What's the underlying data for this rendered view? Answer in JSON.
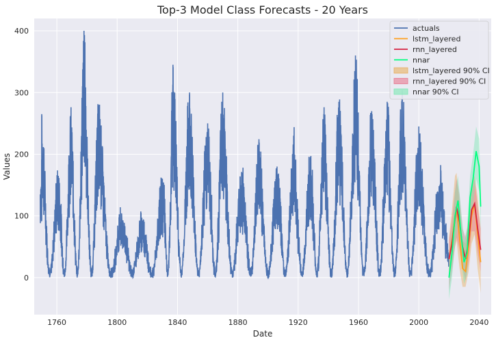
{
  "chart_data": {
    "type": "line",
    "title": "Top-3 Model Class Forecasts - 20 Years",
    "xlabel": "Date",
    "ylabel": "Values",
    "xlim": [
      1745,
      2048
    ],
    "ylim": [
      -60,
      420
    ],
    "xticks": [
      1760,
      1800,
      1840,
      1880,
      1920,
      1960,
      2000,
      2040
    ],
    "yticks": [
      0,
      100,
      200,
      300,
      400
    ],
    "grid": true,
    "legend_position": "top-right",
    "colors": {
      "background": "#eaeaf2",
      "grid": "#ffffff",
      "actuals": "#4c72b0",
      "lstm_layered": "#ff9f1c",
      "rnn_layered": "#d62040",
      "nnar": "#00ff7f",
      "lstm_band": "#e8b060",
      "rnn_band": "#e87890",
      "nnar_band": "#7de8b4"
    },
    "legend": [
      {
        "label": "actuals",
        "kind": "line",
        "color_key": "actuals"
      },
      {
        "label": "lstm_layered",
        "kind": "line",
        "color_key": "lstm_layered"
      },
      {
        "label": "rnn_layered",
        "kind": "line",
        "color_key": "rnn_layered"
      },
      {
        "label": "nnar",
        "kind": "line",
        "color_key": "nnar"
      },
      {
        "label": "lstm_layered 90% CI",
        "kind": "patch",
        "color_key": "lstm_band"
      },
      {
        "label": "rnn_layered 90% CI",
        "kind": "patch",
        "color_key": "rnn_band"
      },
      {
        "label": "nnar 90% CI",
        "kind": "patch",
        "color_key": "nnar_band"
      }
    ],
    "actuals_cycle_peaks": [
      {
        "year": 1750,
        "peak": 265
      },
      {
        "year": 1761,
        "peak": 165
      },
      {
        "year": 1769,
        "peak": 262
      },
      {
        "year": 1778,
        "peak": 400
      },
      {
        "year": 1788,
        "peak": 280
      },
      {
        "year": 1804,
        "peak": 90
      },
      {
        "year": 1816,
        "peak": 95
      },
      {
        "year": 1830,
        "peak": 160
      },
      {
        "year": 1837,
        "peak": 345
      },
      {
        "year": 1848,
        "peak": 300
      },
      {
        "year": 1860,
        "peak": 250
      },
      {
        "year": 1870,
        "peak": 300
      },
      {
        "year": 1883,
        "peak": 170
      },
      {
        "year": 1894,
        "peak": 220
      },
      {
        "year": 1906,
        "peak": 180
      },
      {
        "year": 1917,
        "peak": 230
      },
      {
        "year": 1928,
        "peak": 195
      },
      {
        "year": 1937,
        "peak": 265
      },
      {
        "year": 1947,
        "peak": 285
      },
      {
        "year": 1958,
        "peak": 360
      },
      {
        "year": 1969,
        "peak": 265
      },
      {
        "year": 1979,
        "peak": 285
      },
      {
        "year": 1989,
        "peak": 300
      },
      {
        "year": 2000,
        "peak": 245
      },
      {
        "year": 2014,
        "peak": 150
      }
    ],
    "actuals_range": {
      "start": 1749,
      "end": 2020,
      "min": 0
    },
    "series": [
      {
        "name": "lstm_layered",
        "x": [
          2020,
          2022,
          2024,
          2025,
          2027,
          2029,
          2031,
          2033,
          2035,
          2037,
          2039,
          2041
        ],
        "values": [
          30,
          60,
          100,
          112,
          65,
          15,
          10,
          50,
          100,
          120,
          70,
          25
        ],
        "ci_lower": [
          0,
          20,
          50,
          60,
          15,
          -15,
          -15,
          10,
          55,
          70,
          15,
          -25
        ],
        "ci_upper": [
          65,
          110,
          165,
          170,
          120,
          60,
          55,
          100,
          150,
          165,
          130,
          80
        ]
      },
      {
        "name": "rnn_layered",
        "x": [
          2020,
          2022,
          2024,
          2025,
          2027,
          2029,
          2031,
          2033,
          2035,
          2037,
          2039,
          2041
        ],
        "values": [
          30,
          55,
          95,
          115,
          90,
          50,
          30,
          60,
          110,
          120,
          80,
          45
        ],
        "ci_lower": [
          -20,
          10,
          50,
          65,
          45,
          15,
          -5,
          25,
          75,
          75,
          40,
          10
        ],
        "ci_upper": [
          60,
          95,
          140,
          160,
          135,
          80,
          65,
          95,
          140,
          160,
          115,
          80
        ]
      },
      {
        "name": "nnar",
        "x": [
          2020,
          2022,
          2024,
          2026,
          2028,
          2030,
          2032,
          2034,
          2036,
          2038,
          2040,
          2041
        ],
        "values": [
          0,
          40,
          100,
          125,
          70,
          25,
          40,
          130,
          160,
          205,
          180,
          115
        ],
        "ci_lower": [
          -35,
          0,
          55,
          85,
          30,
          -10,
          5,
          90,
          120,
          160,
          140,
          75
        ],
        "ci_upper": [
          35,
          80,
          140,
          165,
          110,
          60,
          80,
          165,
          200,
          245,
          225,
          150
        ]
      }
    ]
  }
}
